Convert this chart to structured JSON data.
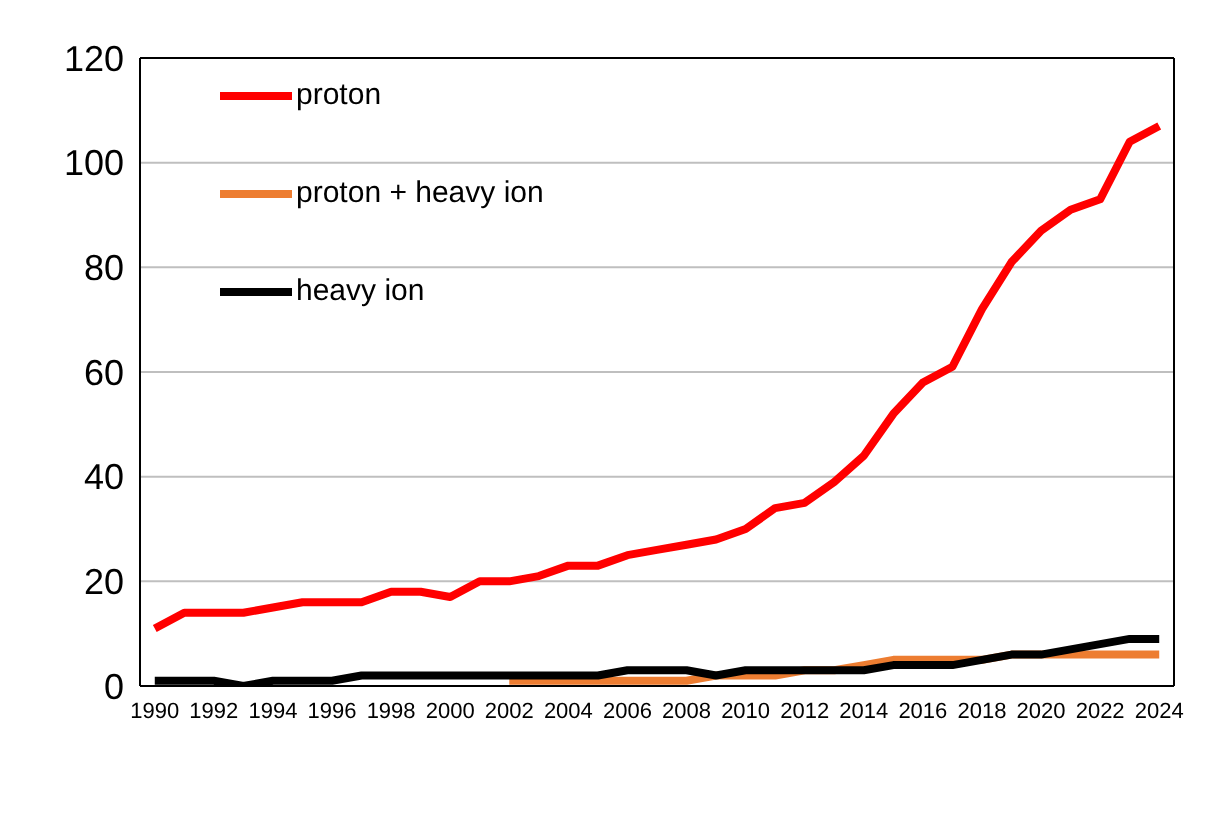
{
  "chart_data": {
    "type": "line",
    "x": [
      1990,
      1991,
      1992,
      1993,
      1994,
      1995,
      1996,
      1997,
      1998,
      1999,
      2000,
      2001,
      2002,
      2003,
      2004,
      2005,
      2006,
      2007,
      2008,
      2009,
      2010,
      2011,
      2012,
      2013,
      2014,
      2015,
      2016,
      2017,
      2018,
      2019,
      2020,
      2021,
      2022,
      2023,
      2024
    ],
    "series": [
      {
        "name": "proton",
        "color": "#ff0000",
        "values": [
          11,
          14,
          14,
          14,
          15,
          16,
          16,
          16,
          18,
          18,
          17,
          20,
          20,
          21,
          23,
          23,
          25,
          26,
          27,
          28,
          30,
          34,
          35,
          39,
          44,
          52,
          58,
          61,
          72,
          81,
          87,
          91,
          93,
          104,
          107
        ]
      },
      {
        "name": "proton + heavy ion",
        "color": "#ed7d31",
        "values": [
          null,
          null,
          null,
          null,
          null,
          null,
          null,
          null,
          null,
          null,
          null,
          null,
          1,
          1,
          1,
          1,
          1,
          1,
          1,
          2,
          2,
          2,
          3,
          3,
          4,
          5,
          5,
          5,
          5,
          6,
          6,
          6,
          6,
          6,
          6
        ]
      },
      {
        "name": "heavy ion",
        "color": "#000000",
        "values": [
          1,
          1,
          1,
          0,
          1,
          1,
          1,
          2,
          2,
          2,
          2,
          2,
          2,
          2,
          2,
          2,
          3,
          3,
          3,
          2,
          3,
          3,
          3,
          3,
          3,
          4,
          4,
          4,
          5,
          6,
          6,
          7,
          8,
          9,
          9
        ]
      }
    ],
    "xlim": [
      1989.5,
      2024.5
    ],
    "xticks": [
      1990,
      1992,
      1994,
      1996,
      1998,
      2000,
      2002,
      2004,
      2006,
      2008,
      2010,
      2012,
      2014,
      2016,
      2018,
      2020,
      2022,
      2024
    ],
    "ylim": [
      0,
      120
    ],
    "yticks": [
      0,
      20,
      40,
      60,
      80,
      100,
      120
    ],
    "grid": "y",
    "legend": "top left",
    "marker": "none",
    "line_style": "solid"
  }
}
